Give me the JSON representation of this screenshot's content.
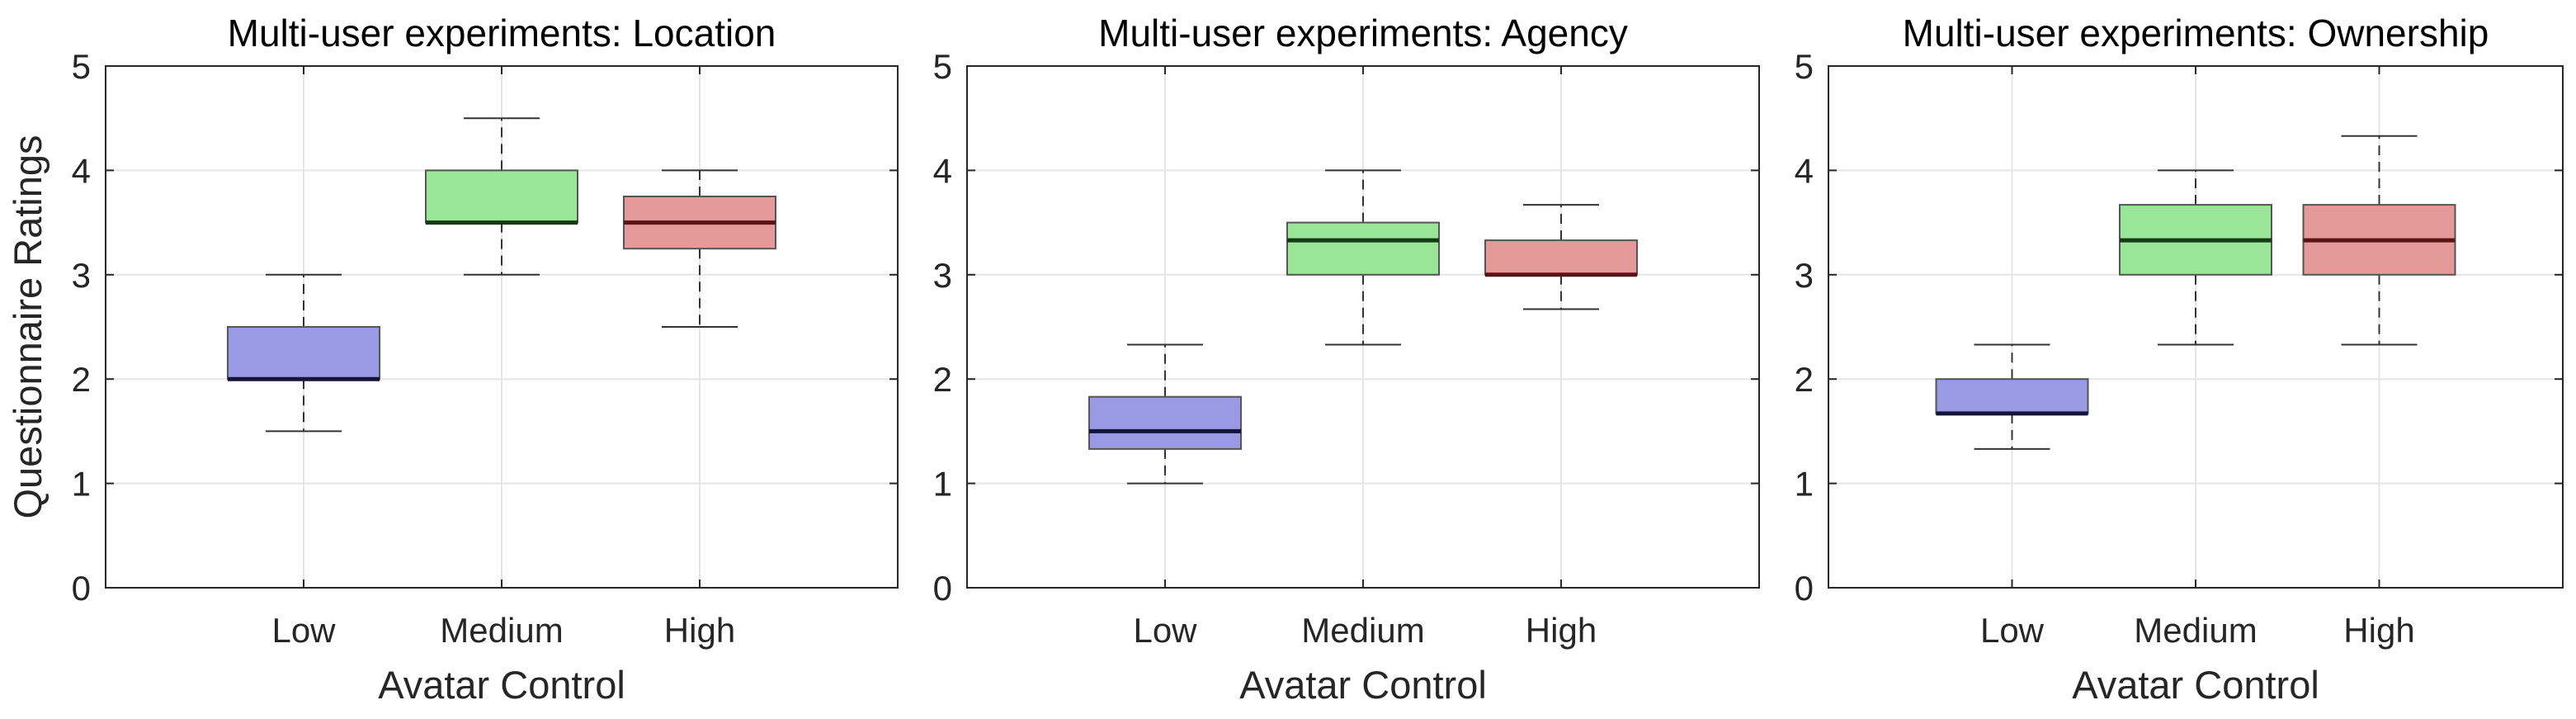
{
  "chart_data": [
    {
      "type": "box",
      "title": "Multi-user experiments: Location",
      "xlabel": "Avatar Control",
      "ylabel": "Questionnaire Ratings",
      "ylim": [
        0,
        5
      ],
      "yticks": [
        "0",
        "1",
        "2",
        "3",
        "4",
        "5"
      ],
      "grid": true,
      "categories": [
        "Low",
        "Medium",
        "High"
      ],
      "boxes": [
        {
          "whisker_low": 1.5,
          "q1": 2.0,
          "median": 2.0,
          "q3": 2.5,
          "whisker_high": 3.0
        },
        {
          "whisker_low": 3.0,
          "q1": 3.5,
          "median": 3.5,
          "q3": 4.0,
          "whisker_high": 4.5
        },
        {
          "whisker_low": 2.5,
          "q1": 3.25,
          "median": 3.5,
          "q3": 3.75,
          "whisker_high": 4.0
        }
      ]
    },
    {
      "type": "box",
      "title": "Multi-user experiments: Agency",
      "xlabel": "Avatar Control",
      "ylabel": "",
      "ylim": [
        0,
        5
      ],
      "yticks": [
        "0",
        "1",
        "2",
        "3",
        "4",
        "5"
      ],
      "grid": true,
      "categories": [
        "Low",
        "Medium",
        "High"
      ],
      "boxes": [
        {
          "whisker_low": 1.0,
          "q1": 1.33,
          "median": 1.5,
          "q3": 1.83,
          "whisker_high": 2.33
        },
        {
          "whisker_low": 2.33,
          "q1": 3.0,
          "median": 3.33,
          "q3": 3.5,
          "whisker_high": 4.0
        },
        {
          "whisker_low": 2.67,
          "q1": 3.0,
          "median": 3.0,
          "q3": 3.33,
          "whisker_high": 3.67
        }
      ]
    },
    {
      "type": "box",
      "title": "Multi-user experiments: Ownership",
      "xlabel": "Avatar Control",
      "ylabel": "",
      "ylim": [
        0,
        5
      ],
      "yticks": [
        "0",
        "1",
        "2",
        "3",
        "4",
        "5"
      ],
      "grid": true,
      "categories": [
        "Low",
        "Medium",
        "High"
      ],
      "boxes": [
        {
          "whisker_low": 1.33,
          "q1": 1.67,
          "median": 1.67,
          "q3": 2.0,
          "whisker_high": 2.33
        },
        {
          "whisker_low": 2.33,
          "q1": 3.0,
          "median": 3.33,
          "q3": 3.67,
          "whisker_high": 4.0
        },
        {
          "whisker_low": 2.33,
          "q1": 3.0,
          "median": 3.33,
          "q3": 3.67,
          "whisker_high": 4.33
        }
      ]
    }
  ],
  "colors": {
    "box_fills": [
      "#9999e6",
      "#99e699",
      "#e69999"
    ],
    "medians": [
      "#14143a",
      "#143a14",
      "#5a1414"
    ],
    "axis": "#262626",
    "grid": "#e5e5e5",
    "whisker": "#333333"
  }
}
